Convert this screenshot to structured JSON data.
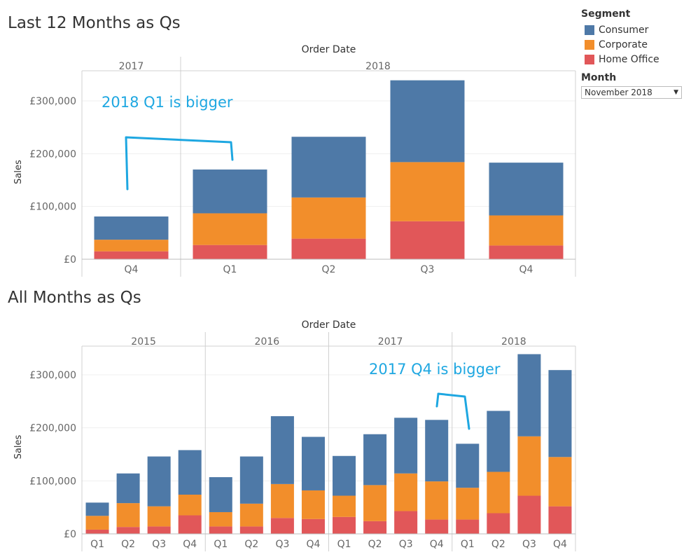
{
  "legend": {
    "title": "Segment",
    "items": [
      {
        "label": "Consumer",
        "color": "#4e79a7"
      },
      {
        "label": "Corporate",
        "color": "#f28e2b"
      },
      {
        "label": "Home Office",
        "color": "#e15759"
      }
    ]
  },
  "filter": {
    "label": "Month",
    "value": "November 2018"
  },
  "chart_data": [
    {
      "type": "bar",
      "title": "Last 12 Months as Qs",
      "header": "Order Date",
      "ylabel": "Sales",
      "ylim": [
        0,
        350000
      ],
      "yticks": [
        0,
        100000,
        200000,
        300000
      ],
      "ytick_labels": [
        "£0",
        "£100,000",
        "£200,000",
        "£300,000"
      ],
      "annotation": "2018 Q1 is bigger",
      "groups": [
        {
          "year": "2017",
          "quarters": [
            {
              "q": "Q4",
              "home_office": 15000,
              "corporate": 22000,
              "consumer": 44000
            }
          ]
        },
        {
          "year": "2018",
          "quarters": [
            {
              "q": "Q1",
              "home_office": 27000,
              "corporate": 60000,
              "consumer": 83000
            },
            {
              "q": "Q2",
              "home_office": 39000,
              "corporate": 78000,
              "consumer": 115000
            },
            {
              "q": "Q3",
              "home_office": 72000,
              "corporate": 112000,
              "consumer": 155000
            },
            {
              "q": "Q4",
              "home_office": 26000,
              "corporate": 57000,
              "consumer": 100000
            }
          ]
        }
      ]
    },
    {
      "type": "bar",
      "title": "All Months as Qs",
      "header": "Order Date",
      "ylabel": "Sales",
      "ylim": [
        0,
        350000
      ],
      "yticks": [
        0,
        100000,
        200000,
        300000
      ],
      "ytick_labels": [
        "£0",
        "£100,000",
        "£200,000",
        "£300,000"
      ],
      "annotation": "2017 Q4 is bigger",
      "groups": [
        {
          "year": "2015",
          "quarters": [
            {
              "q": "Q1",
              "home_office": 8000,
              "corporate": 26000,
              "consumer": 25000
            },
            {
              "q": "Q2",
              "home_office": 13000,
              "corporate": 45000,
              "consumer": 56000
            },
            {
              "q": "Q3",
              "home_office": 14000,
              "corporate": 38000,
              "consumer": 94000
            },
            {
              "q": "Q4",
              "home_office": 35000,
              "corporate": 39000,
              "consumer": 84000
            }
          ]
        },
        {
          "year": "2016",
          "quarters": [
            {
              "q": "Q1",
              "home_office": 14000,
              "corporate": 27000,
              "consumer": 66000
            },
            {
              "q": "Q2",
              "home_office": 14000,
              "corporate": 43000,
              "consumer": 89000
            },
            {
              "q": "Q3",
              "home_office": 30000,
              "corporate": 64000,
              "consumer": 128000
            },
            {
              "q": "Q4",
              "home_office": 28000,
              "corporate": 54000,
              "consumer": 101000
            }
          ]
        },
        {
          "year": "2017",
          "quarters": [
            {
              "q": "Q1",
              "home_office": 32000,
              "corporate": 40000,
              "consumer": 75000
            },
            {
              "q": "Q2",
              "home_office": 24000,
              "corporate": 68000,
              "consumer": 96000
            },
            {
              "q": "Q3",
              "home_office": 43000,
              "corporate": 71000,
              "consumer": 105000
            },
            {
              "q": "Q4",
              "home_office": 27000,
              "corporate": 72000,
              "consumer": 116000
            }
          ]
        },
        {
          "year": "2018",
          "quarters": [
            {
              "q": "Q1",
              "home_office": 27000,
              "corporate": 60000,
              "consumer": 83000
            },
            {
              "q": "Q2",
              "home_office": 39000,
              "corporate": 78000,
              "consumer": 115000
            },
            {
              "q": "Q3",
              "home_office": 72000,
              "corporate": 112000,
              "consumer": 155000
            },
            {
              "q": "Q4",
              "home_office": 52000,
              "corporate": 93000,
              "consumer": 164000
            }
          ]
        }
      ]
    }
  ]
}
